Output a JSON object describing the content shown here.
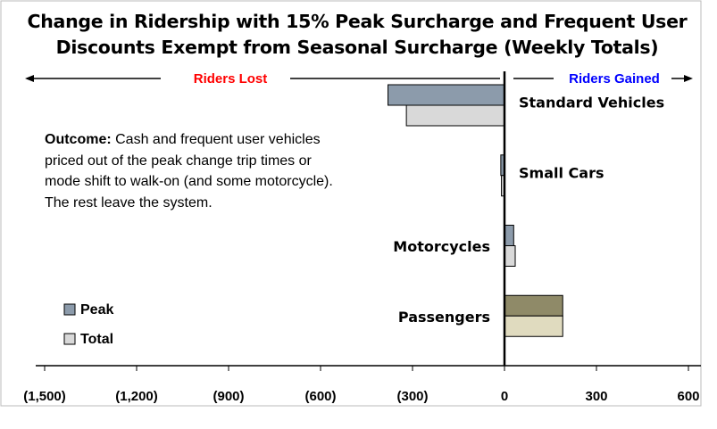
{
  "chart_data": {
    "type": "barh",
    "title": "Change in Ridership with 15% Peak Surcharge and Frequent User Discounts Exempt from Seasonal Surcharge (Weekly Totals)",
    "categories": [
      "Standard Vehicles",
      "Small Cars",
      "Motorcycles",
      "Passengers"
    ],
    "series": [
      {
        "name": "Peak",
        "color": "#8c9bab",
        "colors": [
          "#8c9bab",
          "#8c9bab",
          "#8c9bab",
          "#8f8a68"
        ],
        "values": [
          -380,
          -12,
          30,
          190
        ]
      },
      {
        "name": "Total",
        "color": "#d9d9d9",
        "colors": [
          "#d9d9d9",
          "#d9d9d9",
          "#d9d9d9",
          "#e0dbbf"
        ],
        "values": [
          -320,
          -10,
          35,
          190
        ]
      }
    ],
    "xlim": [
      -1500,
      600
    ],
    "xticks": [
      {
        "value": -1500,
        "label": "(1,500)"
      },
      {
        "value": -1200,
        "label": "(1,200)"
      },
      {
        "value": -900,
        "label": "(900)"
      },
      {
        "value": -600,
        "label": "(600)"
      },
      {
        "value": -300,
        "label": "(300)"
      },
      0,
      300,
      600
    ],
    "annotations": {
      "riders_lost": "Riders Lost",
      "riders_gained": "Riders Gained",
      "outcome_label": "Outcome:",
      "outcome_text": "Cash and frequent user vehicles priced out of the peak change trip times or mode shift to walk-on (and some motorcycle). The rest leave the system."
    }
  }
}
